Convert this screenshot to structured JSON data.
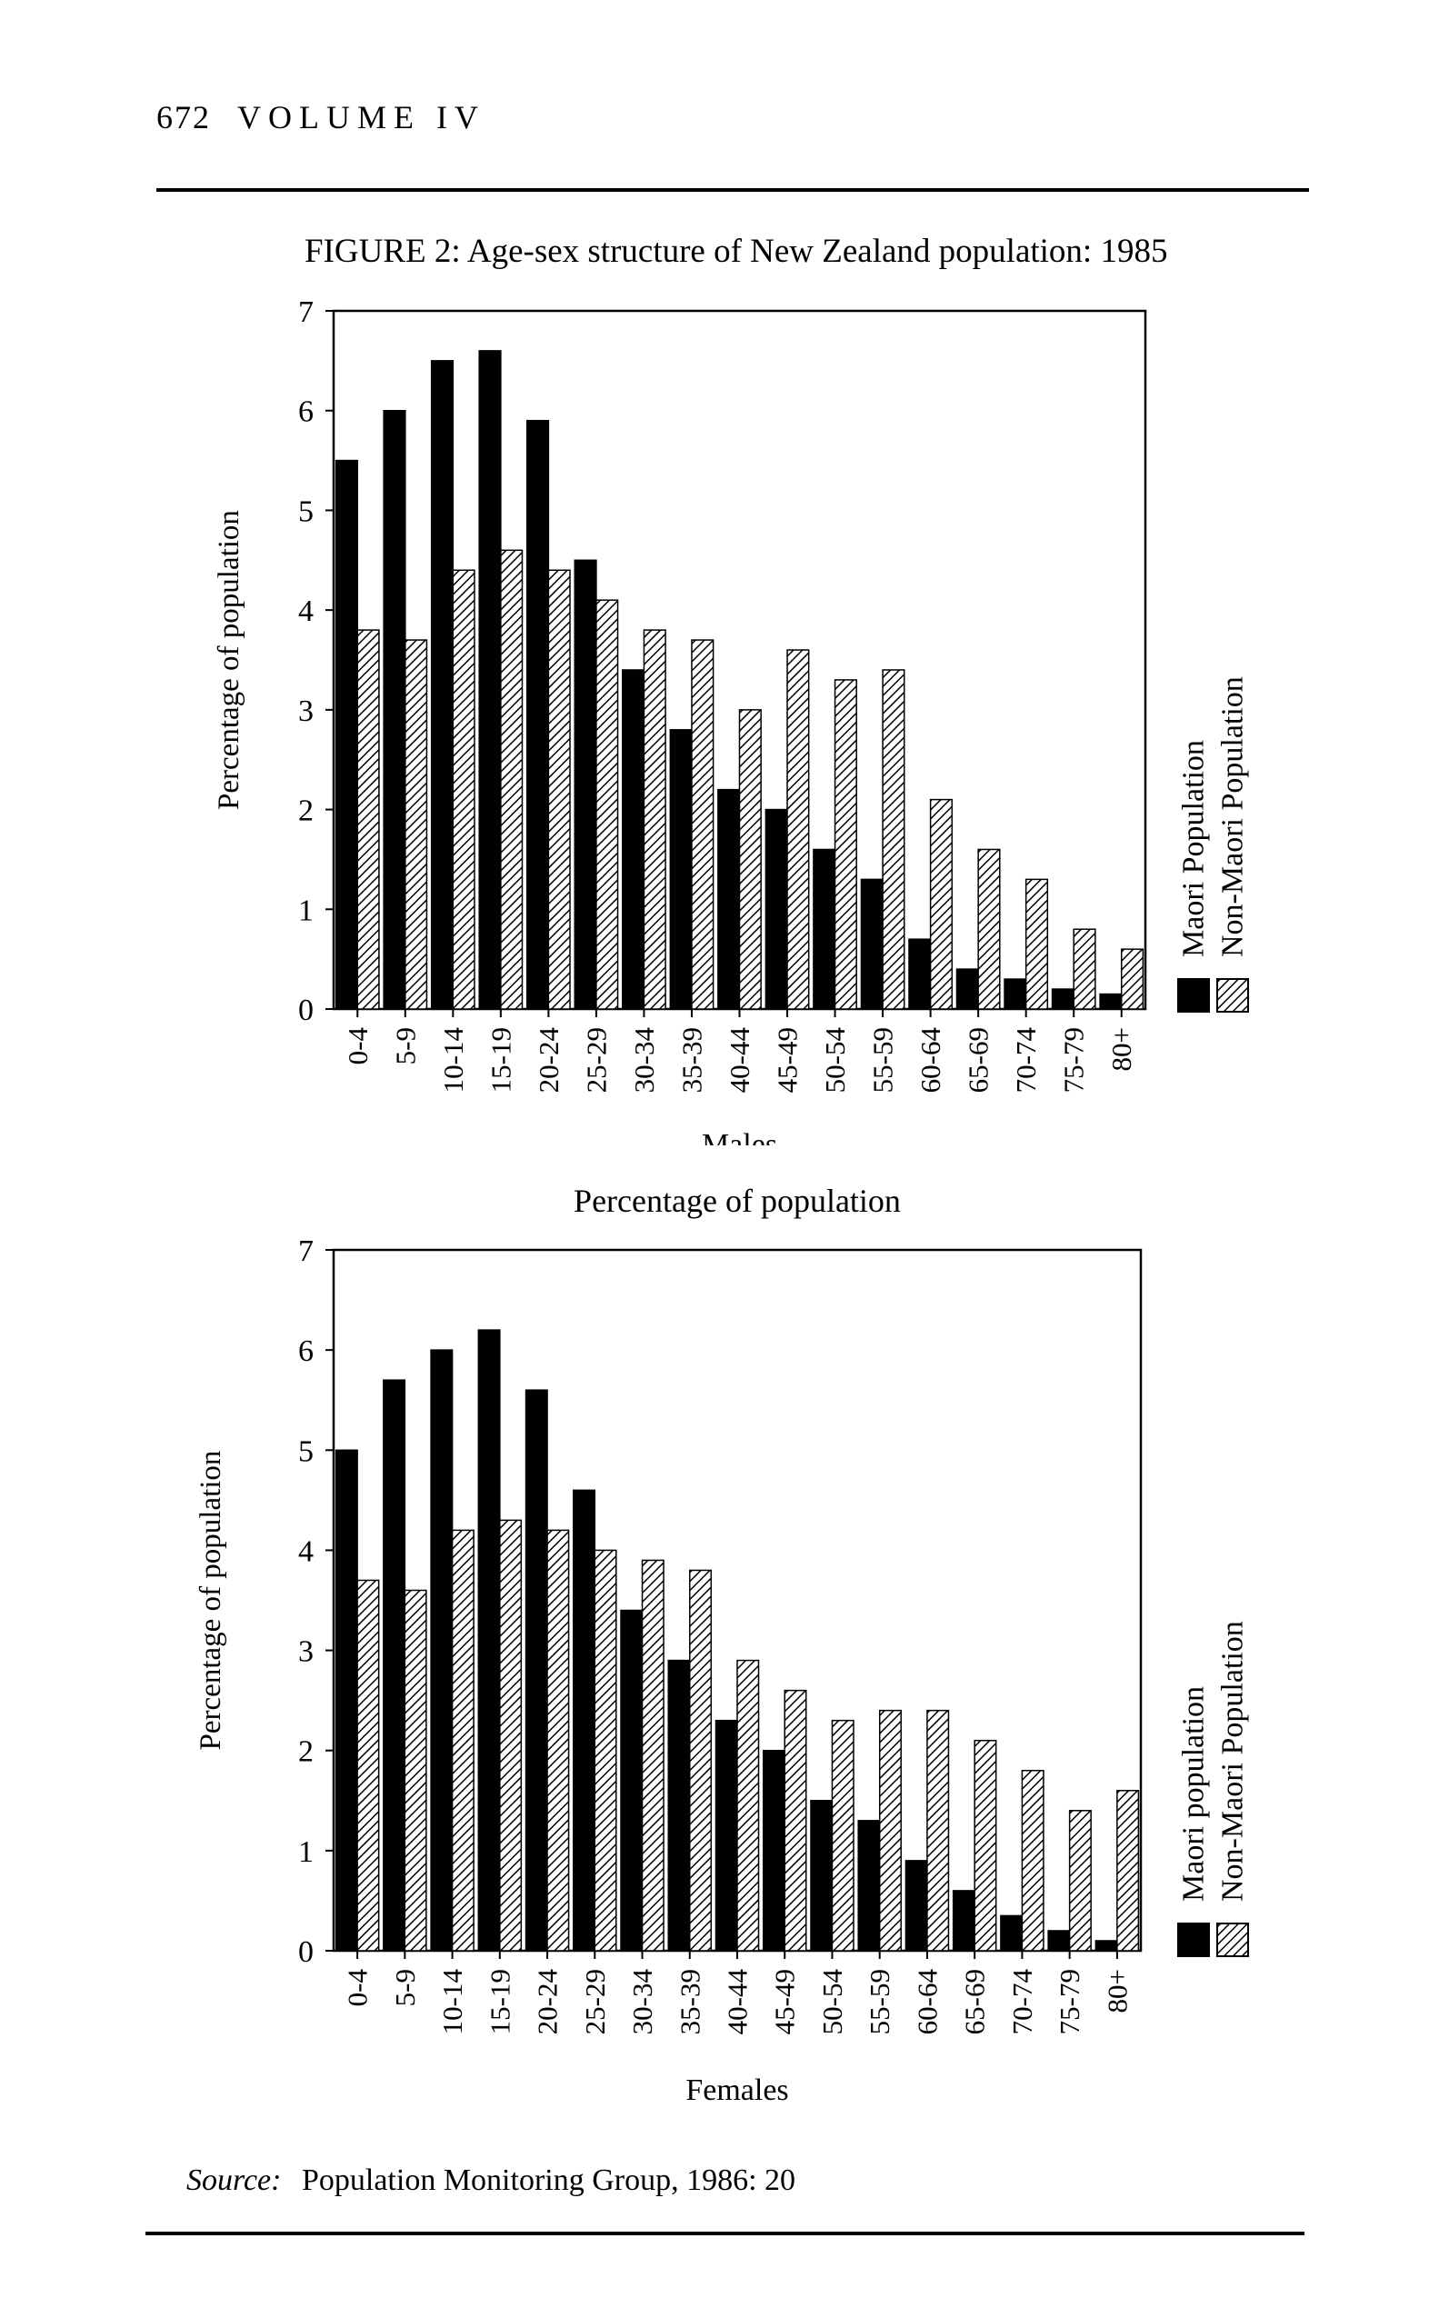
{
  "header": {
    "page_number": "672",
    "volume": "VOLUME IV"
  },
  "figure_title": "FIGURE 2: Age-sex structure of New Zealand population: 1985",
  "source": {
    "label": "Source:",
    "text": "Population Monitoring Group, 1986: 20"
  },
  "colors": {
    "maori": "#000000",
    "non_maori": "hatched",
    "axis": "#000000"
  },
  "chart_data": [
    {
      "type": "bar",
      "title": "",
      "xlabel": "Males",
      "ylabel": "Percentage of population",
      "ylim": [
        0,
        7
      ],
      "yticks": [
        "0",
        "1",
        "2",
        "3",
        "4",
        "5",
        "6",
        "7"
      ],
      "categories": [
        "0-4",
        "5-9",
        "10-14",
        "15-19",
        "20-24",
        "25-29",
        "30-34",
        "35-39",
        "40-44",
        "45-49",
        "50-54",
        "55-59",
        "60-64",
        "65-69",
        "70-74",
        "75-79",
        "80+"
      ],
      "legend_position": "right",
      "series": [
        {
          "name": "Maori Population",
          "fill": "solid",
          "values": [
            5.5,
            6.0,
            6.5,
            6.6,
            5.9,
            4.5,
            3.4,
            2.8,
            2.2,
            2.0,
            1.6,
            1.3,
            0.7,
            0.4,
            0.3,
            0.2,
            0.15
          ]
        },
        {
          "name": "Non-Maori Population",
          "fill": "hatched",
          "values": [
            3.8,
            3.7,
            4.4,
            4.6,
            4.4,
            4.1,
            3.8,
            3.7,
            3.0,
            3.6,
            3.3,
            3.4,
            2.1,
            1.6,
            1.3,
            0.8,
            0.6
          ]
        }
      ]
    },
    {
      "type": "bar",
      "title": "Percentage of population",
      "xlabel": "Females",
      "ylabel": "Percentage of population",
      "ylim": [
        0,
        7
      ],
      "yticks": [
        "0",
        "1",
        "2",
        "3",
        "4",
        "5",
        "6",
        "7"
      ],
      "categories": [
        "0-4",
        "5-9",
        "10-14",
        "15-19",
        "20-24",
        "25-29",
        "30-34",
        "35-39",
        "40-44",
        "45-49",
        "50-54",
        "55-59",
        "60-64",
        "65-69",
        "70-74",
        "75-79",
        "80+"
      ],
      "legend_position": "right",
      "series": [
        {
          "name": "Maori population",
          "fill": "solid",
          "values": [
            5.0,
            5.7,
            6.0,
            6.2,
            5.6,
            4.6,
            3.4,
            2.9,
            2.3,
            2.0,
            1.5,
            1.3,
            0.9,
            0.6,
            0.35,
            0.2,
            0.1
          ]
        },
        {
          "name": "Non-Maori Population",
          "fill": "hatched",
          "values": [
            3.7,
            3.6,
            4.2,
            4.3,
            4.2,
            4.0,
            3.9,
            3.8,
            2.9,
            2.6,
            2.3,
            2.4,
            2.4,
            2.1,
            1.8,
            1.4,
            1.6
          ]
        }
      ]
    }
  ]
}
